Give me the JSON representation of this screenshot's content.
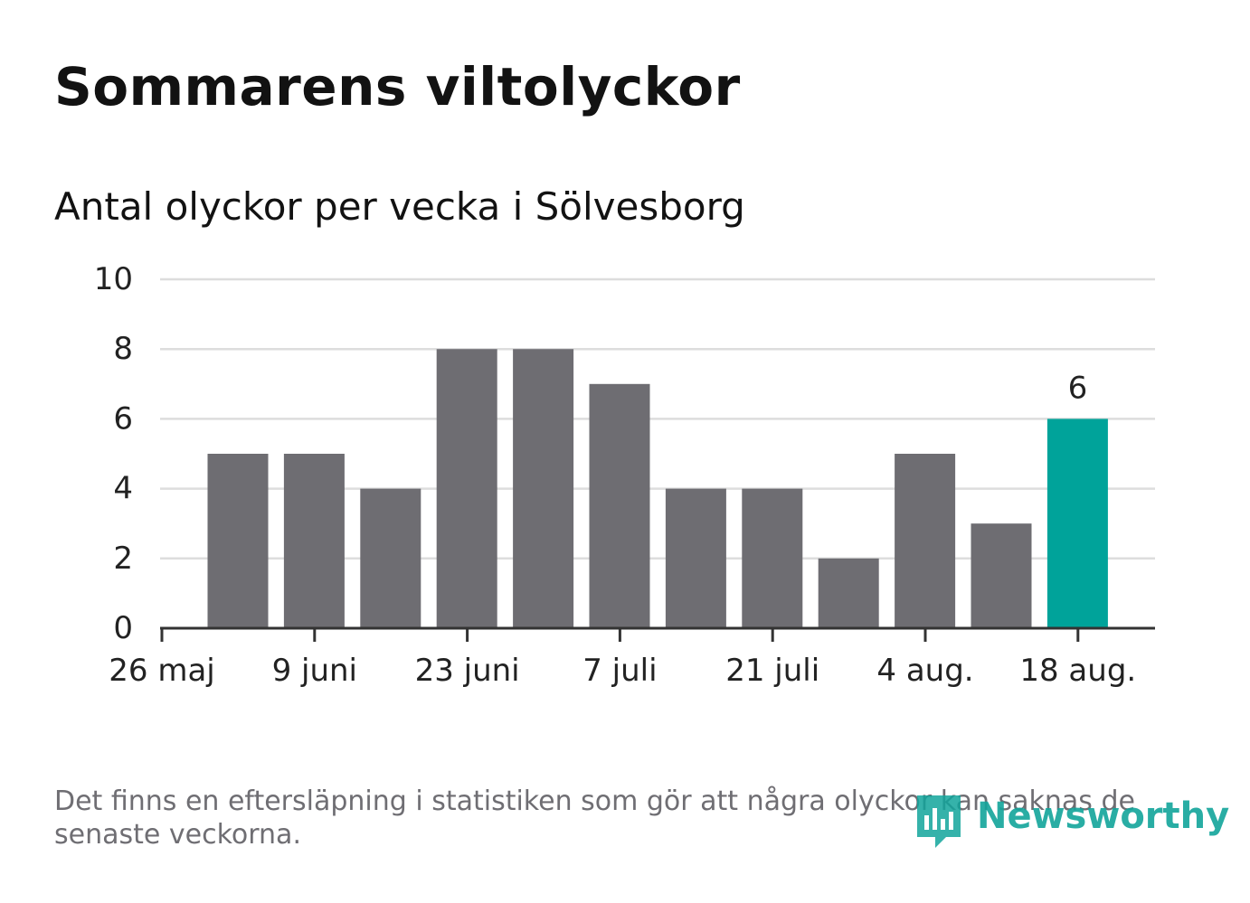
{
  "title": "Sommarens viltolyckor",
  "footnote": "Det finns en eftersläpning i statistiken som gör att några olyckor kan saknas de senaste veckorna.",
  "brand": {
    "name": "Newsworthy",
    "color": "#12a59b"
  },
  "colors": {
    "bar": "#6e6d72",
    "highlight": "#00a39a",
    "grid": "#dddddd",
    "axis": "#333333",
    "text": "#222222"
  },
  "chart_data": {
    "type": "bar",
    "title": "",
    "subtitle": "Antal olyckor per vecka i Sölvesborg",
    "xlabel": "",
    "ylabel": "",
    "ylim": [
      0,
      10
    ],
    "yticks": [
      0,
      2,
      4,
      6,
      8,
      10
    ],
    "grid": true,
    "values": [
      5,
      5,
      4,
      8,
      8,
      7,
      4,
      4,
      2,
      5,
      3,
      6
    ],
    "highlight_index": 11,
    "highlight_label": "6",
    "xtick_labels": [
      "26 maj",
      "9 juni",
      "23 juni",
      "7 juli",
      "21 juli",
      "4 aug.",
      "18 aug."
    ]
  }
}
